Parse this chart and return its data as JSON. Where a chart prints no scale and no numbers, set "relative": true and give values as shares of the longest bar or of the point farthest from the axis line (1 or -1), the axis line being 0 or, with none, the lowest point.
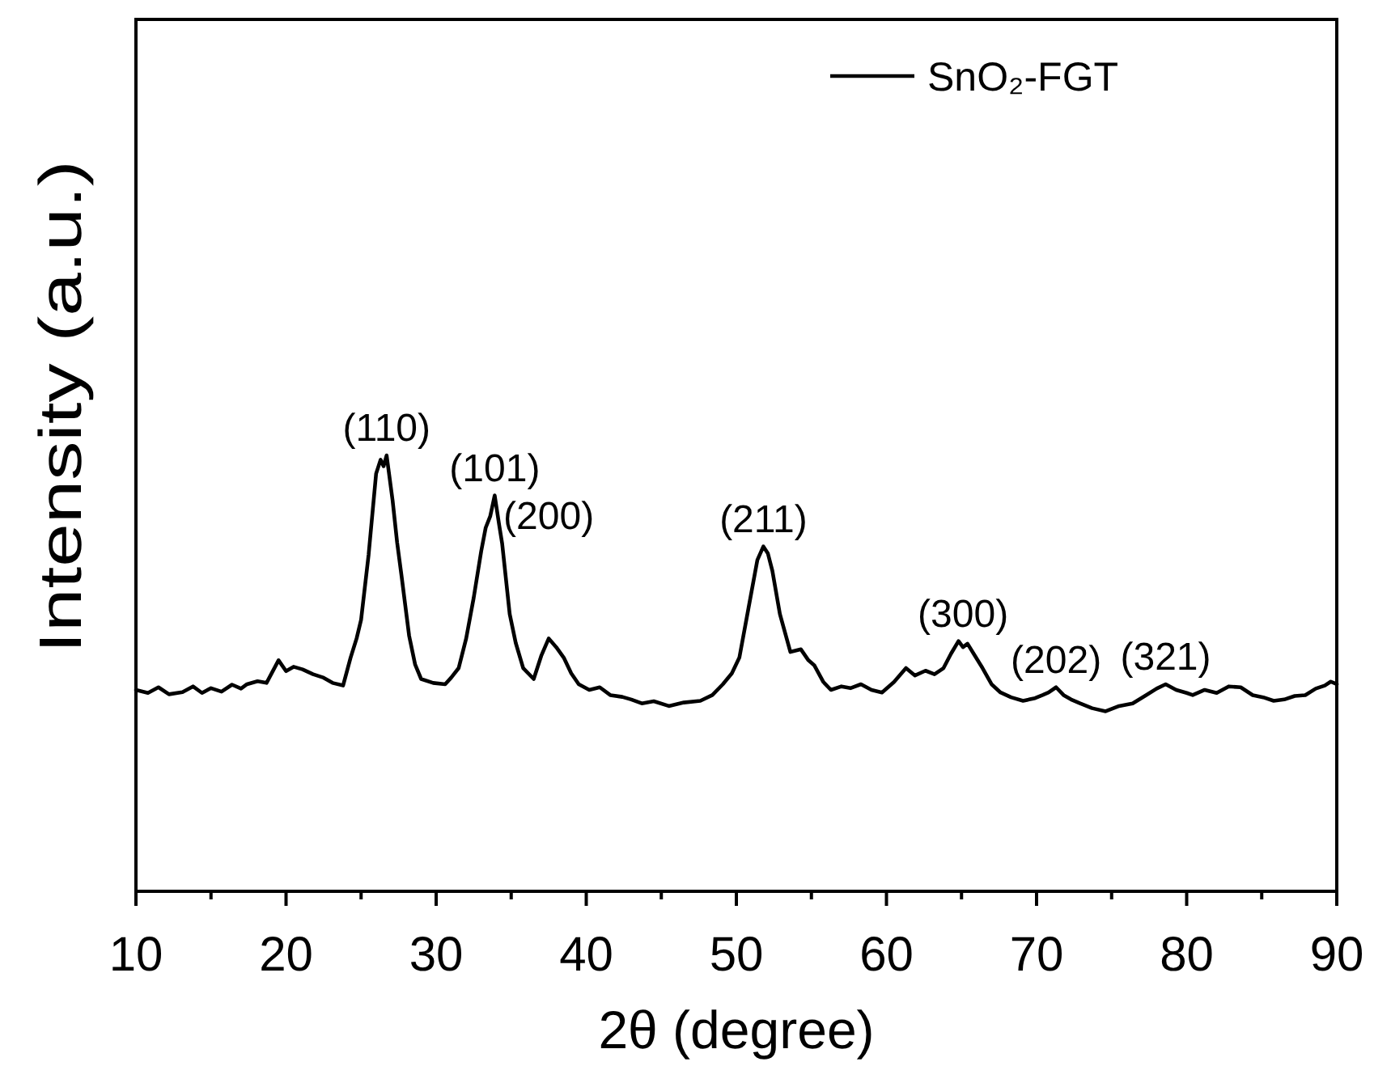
{
  "chart_data": {
    "type": "line",
    "xlabel": "2θ (degree)",
    "ylabel": "Intensity (a.u.)",
    "relative": true,
    "tick_labels": "x",
    "legend": "top right",
    "xlim": [
      10,
      90
    ],
    "xticks": [
      10,
      {
        "value": 15,
        "label": null
      },
      20,
      {
        "value": 25,
        "label": null
      },
      30,
      {
        "value": 35,
        "label": null
      },
      40,
      {
        "value": 45,
        "label": null
      },
      50,
      {
        "value": 55,
        "label": null
      },
      60,
      {
        "value": 65,
        "label": null
      },
      70,
      {
        "value": 75,
        "label": null
      },
      80,
      {
        "value": 85,
        "label": null
      },
      90
    ],
    "x": [
      10,
      10.8,
      11.5,
      12.2,
      13.1,
      13.8,
      14.4,
      15,
      15.7,
      16.4,
      17,
      17.4,
      18.1,
      18.7,
      19.5,
      20,
      20.5,
      21.1,
      21.8,
      22.5,
      23.1,
      23.8,
      24.3,
      24.7,
      25,
      25.5,
      26,
      26.3,
      26.5,
      26.7,
      27.1,
      27.4,
      27.7,
      28.2,
      28.6,
      29,
      29.8,
      30.6,
      31,
      31.5,
      32,
      32.5,
      33,
      33.3,
      33.6,
      33.9,
      34.2,
      34.4,
      34.9,
      35.3,
      35.8,
      36.5,
      37,
      37.5,
      38,
      38.5,
      39,
      39.5,
      40.2,
      40.9,
      41.6,
      42.4,
      43,
      43.7,
      44.5,
      45.5,
      46.5,
      47.6,
      48.4,
      49.1,
      49.7,
      50.2,
      50.8,
      51.4,
      51.8,
      52.1,
      52.4,
      52.9,
      53.6,
      54.3,
      54.8,
      55.2,
      55.8,
      56.3,
      57,
      57.6,
      58.3,
      59,
      59.7,
      60.5,
      61.3,
      61.9,
      62.6,
      63.2,
      63.8,
      64.3,
      64.8,
      65.1,
      65.4,
      65.9,
      66.4,
      67,
      67.6,
      68.3,
      69.1,
      69.9,
      70.4,
      70.8,
      71.3,
      71.8,
      72.3,
      72.9,
      73.7,
      74.6,
      75.5,
      76.4,
      77.3,
      78,
      78.6,
      79.3,
      80,
      80.4,
      81.2,
      82,
      82.8,
      83.6,
      84.4,
      85.1,
      85.8,
      86.5,
      87.2,
      87.9,
      88.6,
      89.2,
      89.6,
      90
    ],
    "series": [
      {
        "name": "SnO₂-FGT",
        "color": "#000000",
        "values": [
          0.462,
          0.455,
          0.468,
          0.452,
          0.457,
          0.47,
          0.455,
          0.466,
          0.458,
          0.474,
          0.465,
          0.475,
          0.482,
          0.478,
          0.53,
          0.505,
          0.515,
          0.509,
          0.498,
          0.49,
          0.478,
          0.472,
          0.536,
          0.58,
          0.623,
          0.772,
          0.958,
          0.99,
          0.975,
          1,
          0.896,
          0.8,
          0.722,
          0.586,
          0.52,
          0.487,
          0.478,
          0.475,
          0.49,
          0.512,
          0.58,
          0.673,
          0.78,
          0.834,
          0.86,
          0.908,
          0.84,
          0.797,
          0.636,
          0.57,
          0.512,
          0.487,
          0.54,
          0.58,
          0.56,
          0.536,
          0.5,
          0.475,
          0.462,
          0.468,
          0.45,
          0.446,
          0.44,
          0.431,
          0.436,
          0.425,
          0.433,
          0.437,
          0.45,
          0.475,
          0.5,
          0.536,
          0.648,
          0.76,
          0.791,
          0.775,
          0.735,
          0.636,
          0.549,
          0.555,
          0.53,
          0.518,
          0.48,
          0.462,
          0.47,
          0.466,
          0.475,
          0.462,
          0.456,
          0.48,
          0.512,
          0.495,
          0.506,
          0.498,
          0.512,
          0.545,
          0.574,
          0.56,
          0.568,
          0.54,
          0.512,
          0.475,
          0.456,
          0.445,
          0.437,
          0.443,
          0.45,
          0.456,
          0.468,
          0.45,
          0.44,
          0.431,
          0.42,
          0.413,
          0.425,
          0.431,
          0.45,
          0.465,
          0.475,
          0.462,
          0.455,
          0.45,
          0.462,
          0.455,
          0.47,
          0.468,
          0.45,
          0.445,
          0.437,
          0.44,
          0.448,
          0.45,
          0.465,
          0.472,
          0.481,
          0.475
        ]
      }
    ],
    "annotations": [
      {
        "text": "(110)",
        "x": 26.7,
        "y": 1
      },
      {
        "text": "(101)",
        "x": 33.9,
        "y": 0.908
      },
      {
        "text": "(200)",
        "x": 37.5,
        "y": 0.58
      },
      {
        "text": "(211)",
        "x": 51.8,
        "y": 0.791
      },
      {
        "text": "(300)",
        "x": 65.1,
        "y": 0.574
      },
      {
        "text": "(202)",
        "x": 71.3,
        "y": 0.468
      },
      {
        "text": "(321)",
        "x": 78.6,
        "y": 0.475
      }
    ]
  }
}
